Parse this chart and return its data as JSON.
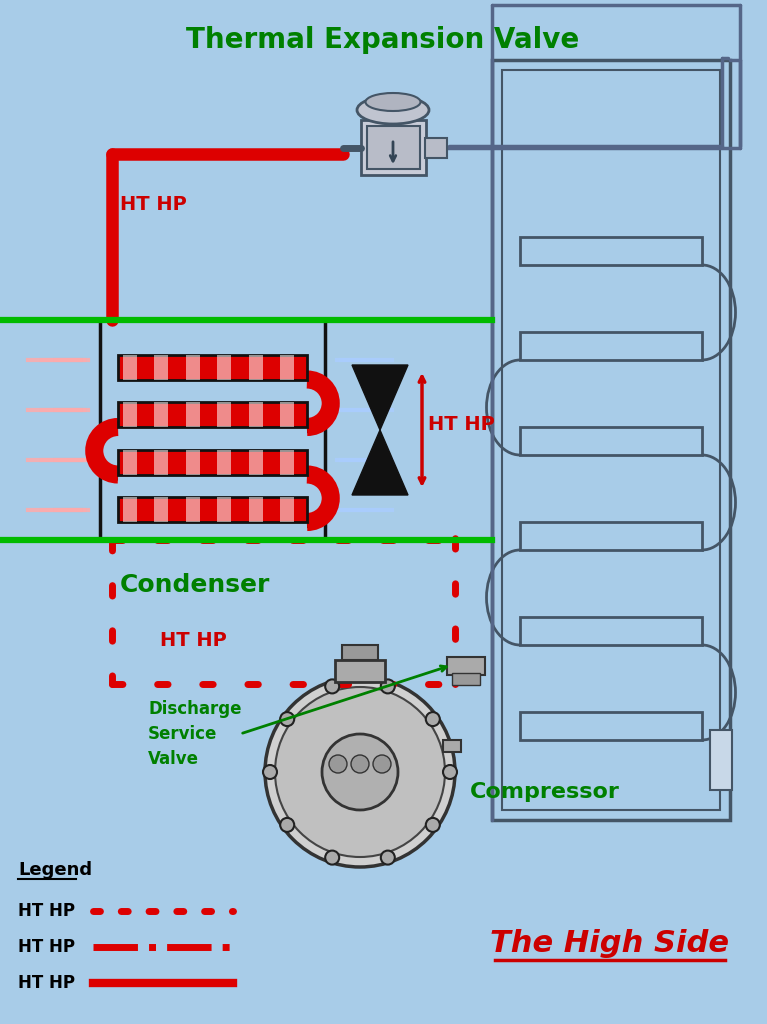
{
  "bg_color": "#a8cce8",
  "tev_label": "Thermal Expansion Valve",
  "tev_color": "#008000",
  "condenser_label": "Condenser",
  "condenser_color": "#008000",
  "compressor_label": "Compressor",
  "compressor_color": "#008000",
  "discharge_label": "Discharge\nService\nValve",
  "discharge_color": "#008000",
  "ht_hp_color": "#cc0000",
  "red_pipe": "#dd0000",
  "gray_pipe": "#556688",
  "legend_title": "Legend",
  "legend_ht_hp": "HT HP",
  "high_side_label": "The High Side",
  "high_side_color": "#cc0000",
  "green_color": "#00bb00",
  "hot_air": "#ffaaaa",
  "cool_air": "#aaccff",
  "fan_color": "#111111",
  "cond_edge": "#111111",
  "fridge_edge": "#445566",
  "comp_face": "#d0d0d0",
  "comp_edge": "#333333"
}
